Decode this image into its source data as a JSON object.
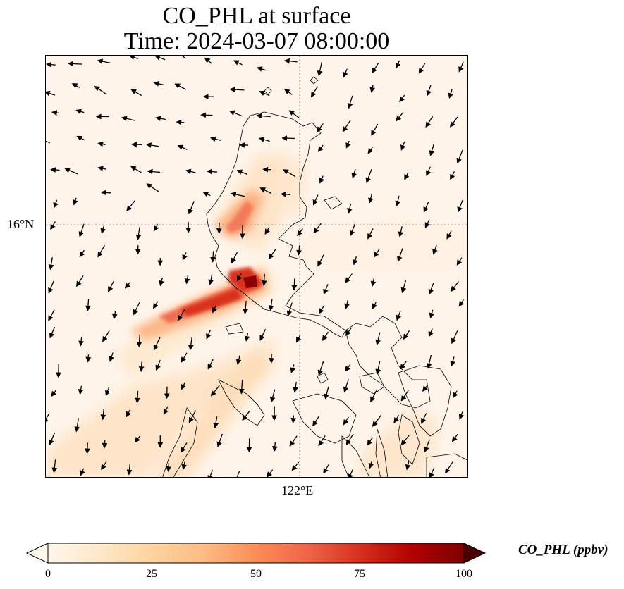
{
  "title_line1": "CO_PHL at surface",
  "title_line2": "Time: 2024-03-07 08:00:00",
  "lat_tick": "16°N",
  "lon_tick": "122°E",
  "colorbar": {
    "label": "CO_PHL (ppbv)",
    "ticks": [
      "0",
      "25",
      "50",
      "75",
      "100"
    ],
    "min": 0,
    "max": 100,
    "extend": "both",
    "colormap": "OrRd",
    "colors": [
      "#fff7ec",
      "#fee8c8",
      "#fdd49e",
      "#fdbb84",
      "#fc8d59",
      "#ef6548",
      "#d7301f",
      "#b30000",
      "#7f0000"
    ]
  },
  "map": {
    "projection": "lat-lon",
    "gridlines": "dotted",
    "wind_vectors": "shown",
    "coastlines": "shown"
  }
}
